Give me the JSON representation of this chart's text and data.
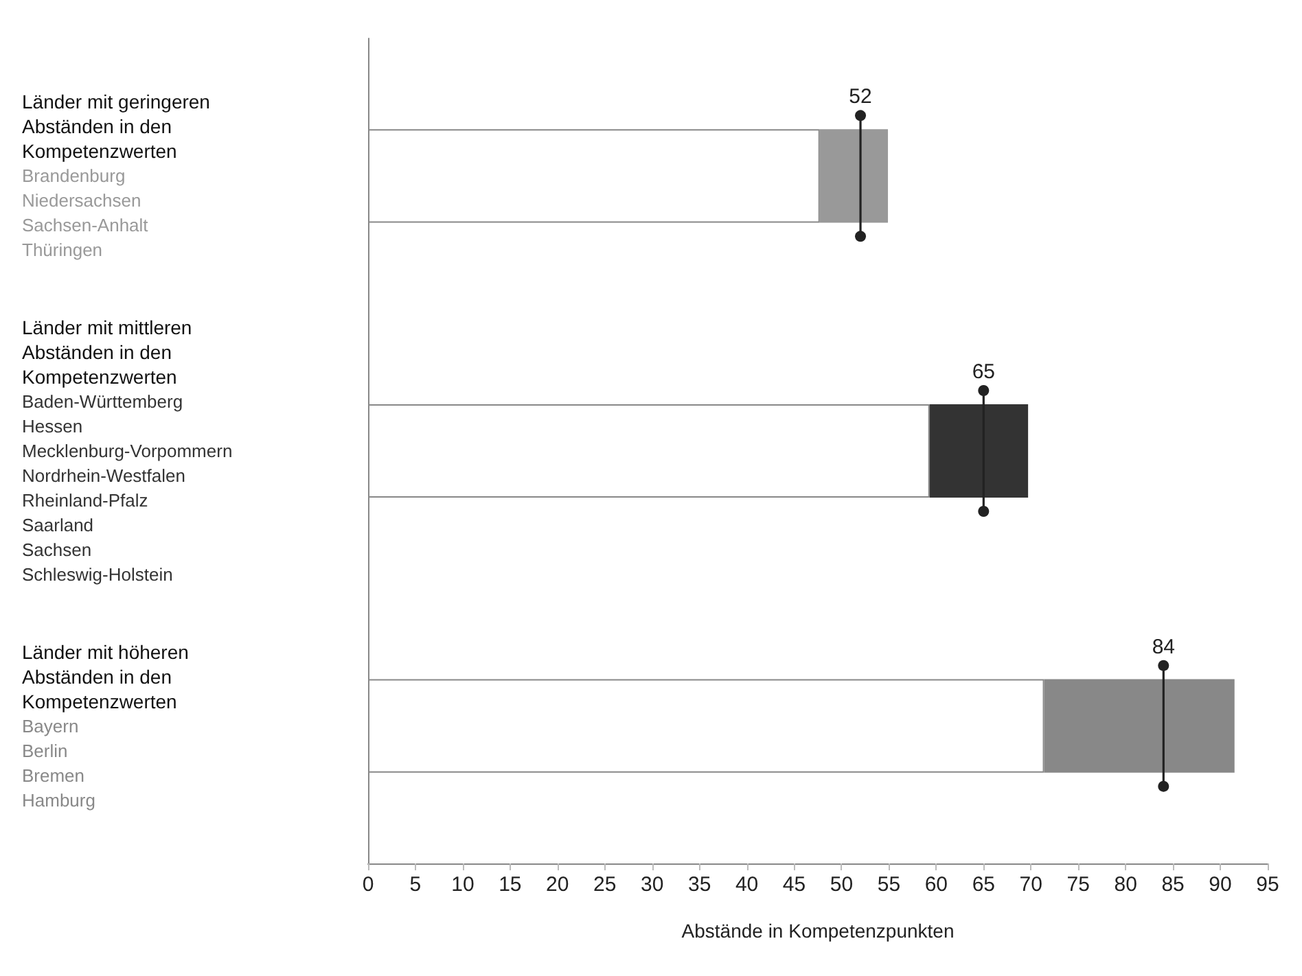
{
  "chart_data": {
    "type": "bar",
    "orientation": "horizontal",
    "stacked": true,
    "xlabel": "Abstände in Kompetenzpunkten",
    "categories": [
      "Länder mit geringeren\nAbständen in den\nKompetenzwerten\nBrandenburg\nNiedersachsen\nSachsen-Anhalt\nThüringen",
      "Länder mit mittleren\nAbständen in den\nKompetenzwerten\nBaden-Württemberg\nHessen\nMecklenburg-Vorpommern\nNordrhein-Westfalen\nRheinland-Pfalz\nSaarland\nSachsen\nSchleswig-Holstein",
      "Länder mit höheren\nAbständen in den\nKompetenzwerten\nBayern\nBerlin\nBremen\nHamburg"
    ],
    "series": [
      {
        "color": "#ffffff",
        "values": [
          47.7,
          59.3,
          71.4
        ]
      },
      {
        "colors": [
          "#999999",
          "#333333",
          "#888888"
        ],
        "values": [
          7.2,
          10.4,
          20.1
        ]
      },
      {
        "type": "scatter",
        "color": "#222222",
        "values": [
          52,
          65,
          84
        ],
        "value_labels": [
          "52",
          "65",
          "84"
        ]
      }
    ],
    "xlim": [
      0,
      95
    ],
    "xticks": [
      0,
      5,
      10,
      15,
      20,
      25,
      30,
      35,
      40,
      45,
      50,
      55,
      60,
      65,
      70,
      75,
      80,
      85,
      90,
      95
    ],
    "grid": false
  }
}
